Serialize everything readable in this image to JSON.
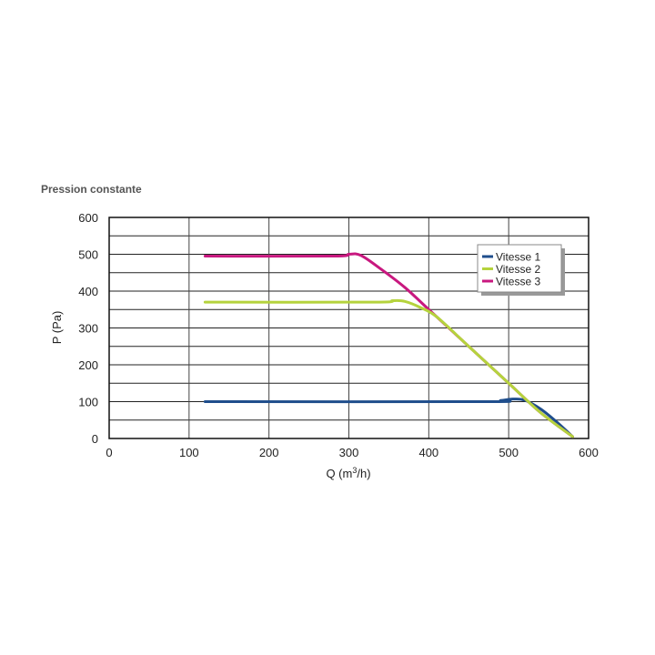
{
  "chart_data": {
    "type": "line",
    "title": "Pression constante",
    "xlabel": "Q (m³/h)",
    "xlabel_parts": {
      "pre": "Q (m",
      "sup": "3",
      "post": "/h)"
    },
    "ylabel": "P (Pa)",
    "xlim": [
      0,
      600
    ],
    "ylim": [
      0,
      600
    ],
    "xticks": [
      0,
      100,
      200,
      300,
      400,
      500,
      600
    ],
    "yticks": [
      0,
      100,
      200,
      300,
      400,
      500,
      600
    ],
    "ygrid_step": 50,
    "grid": true,
    "legend": "top-right",
    "series": [
      {
        "name": "Vitesse 1",
        "color": "#1f4e8c",
        "points": [
          [
            120,
            100
          ],
          [
            470,
            100
          ],
          [
            490,
            103
          ],
          [
            505,
            107
          ],
          [
            520,
            104
          ],
          [
            540,
            80
          ],
          [
            560,
            45
          ],
          [
            580,
            5
          ]
        ]
      },
      {
        "name": "Vitesse 2",
        "color": "#b5d33d",
        "points": [
          [
            120,
            370
          ],
          [
            330,
            370
          ],
          [
            355,
            374
          ],
          [
            370,
            372
          ],
          [
            390,
            355
          ],
          [
            410,
            330
          ],
          [
            450,
            250
          ],
          [
            500,
            150
          ],
          [
            540,
            70
          ],
          [
            580,
            5
          ]
        ]
      },
      {
        "name": "Vitesse 3",
        "color": "#c8187f",
        "points": [
          [
            120,
            495
          ],
          [
            280,
            495
          ],
          [
            300,
            500
          ],
          [
            315,
            497
          ],
          [
            340,
            460
          ],
          [
            370,
            410
          ],
          [
            400,
            350
          ],
          [
            430,
            290
          ],
          [
            450,
            250
          ],
          [
            500,
            150
          ],
          [
            540,
            70
          ],
          [
            580,
            5
          ]
        ]
      }
    ]
  }
}
